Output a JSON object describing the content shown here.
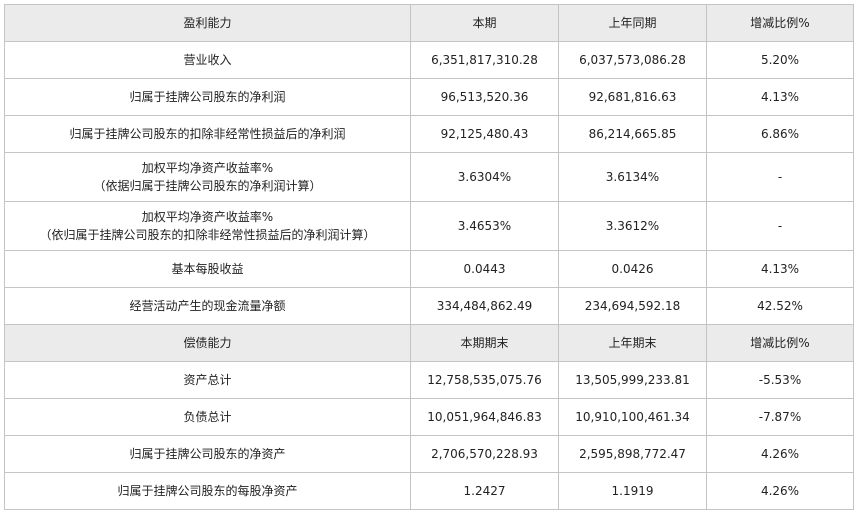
{
  "sections": [
    {
      "header": [
        "盈利能力",
        "本期",
        "上年同期",
        "增减比例%"
      ],
      "rows": [
        [
          "营业收入",
          "6,351,817,310.28",
          "6,037,573,086.28",
          "5.20%"
        ],
        [
          "归属于挂牌公司股东的净利润",
          "96,513,520.36",
          "92,681,816.63",
          "4.13%"
        ],
        [
          "归属于挂牌公司股东的扣除非经常性损益后的净利润",
          "92,125,480.43",
          "86,214,665.85",
          "6.86%"
        ],
        [
          [
            "加权平均净资产收益率%",
            "（依据归属于挂牌公司股东的净利润计算）"
          ],
          "3.6304%",
          "3.6134%",
          "-"
        ],
        [
          [
            "加权平均净资产收益率%",
            "（依归属于挂牌公司股东的扣除非经常性损益后的净利润计算）"
          ],
          "3.4653%",
          "3.3612%",
          "-"
        ],
        [
          "基本每股收益",
          "0.0443",
          "0.0426",
          "4.13%"
        ],
        [
          "经营活动产生的现金流量净额",
          "334,484,862.49",
          "234,694,592.18",
          "42.52%"
        ]
      ]
    },
    {
      "header": [
        "偿债能力",
        "本期期末",
        "上年期末",
        "增减比例%"
      ],
      "rows": [
        [
          "资产总计",
          "12,758,535,075.76",
          "13,505,999,233.81",
          "-5.53%"
        ],
        [
          "负债总计",
          "10,051,964,846.83",
          "10,910,100,461.34",
          "-7.87%"
        ],
        [
          "归属于挂牌公司股东的净资产",
          "2,706,570,228.93",
          "2,595,898,772.47",
          "4.26%"
        ],
        [
          "归属于挂牌公司股东的每股净资产",
          "1.2427",
          "1.1919",
          "4.26%"
        ]
      ]
    }
  ]
}
